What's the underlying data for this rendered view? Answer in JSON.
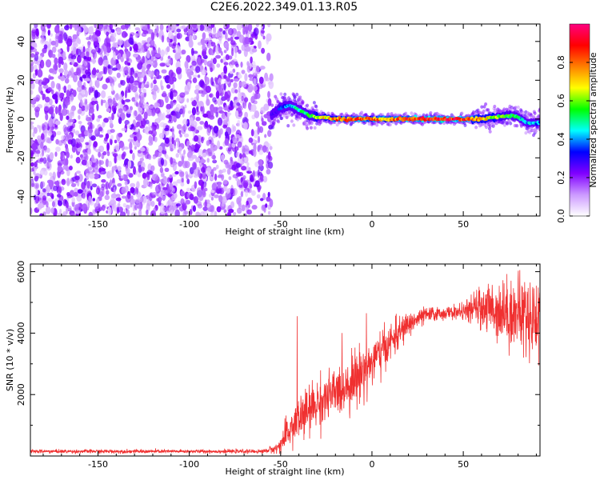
{
  "title": "C2E6.2022.349.01.13.R05",
  "chart_data": [
    {
      "type": "heatmap",
      "title": "C2E6.2022.349.01.13.R05",
      "xlabel": "Height of straight line (km)",
      "ylabel": "Frequency (Hz)",
      "xlim": [
        -187,
        92
      ],
      "ylim": [
        -50,
        49
      ],
      "xticks": [
        -150,
        -100,
        -50,
        0,
        50
      ],
      "yticks": [
        -40,
        -20,
        0,
        20,
        40
      ],
      "colorbar": {
        "label": "Normalized spectral amplitude",
        "range": [
          0.0,
          1.0
        ],
        "ticks": [
          0.0,
          0.2,
          0.4,
          0.6,
          0.8
        ],
        "colors": [
          "#ffffff",
          "#cc99ff",
          "#8000ff",
          "#0000ff",
          "#00ffff",
          "#00ff00",
          "#ffff00",
          "#ff8000",
          "#ff0000",
          "#ff0080"
        ]
      },
      "noise_region": {
        "x_from": -187,
        "x_to": -55,
        "amplitude": 0.15
      },
      "signal_ridge": [
        {
          "x": -55,
          "freq": 2,
          "amp": 0.25
        },
        {
          "x": -50,
          "freq": 6,
          "amp": 0.35
        },
        {
          "x": -45,
          "freq": 7,
          "amp": 0.45
        },
        {
          "x": -40,
          "freq": 5,
          "amp": 0.5
        },
        {
          "x": -35,
          "freq": 2,
          "amp": 0.55
        },
        {
          "x": -30,
          "freq": 1,
          "amp": 0.65
        },
        {
          "x": -20,
          "freq": 0,
          "amp": 0.8
        },
        {
          "x": -10,
          "freq": 0,
          "amp": 0.85
        },
        {
          "x": 0,
          "freq": 0,
          "amp": 0.85
        },
        {
          "x": 10,
          "freq": 0,
          "amp": 0.8
        },
        {
          "x": 20,
          "freq": 0,
          "amp": 0.9
        },
        {
          "x": 30,
          "freq": 0,
          "amp": 0.95
        },
        {
          "x": 40,
          "freq": 0,
          "amp": 0.95
        },
        {
          "x": 50,
          "freq": 0,
          "amp": 0.9
        },
        {
          "x": 60,
          "freq": 0,
          "amp": 0.75
        },
        {
          "x": 70,
          "freq": 1,
          "amp": 0.6
        },
        {
          "x": 75,
          "freq": 2,
          "amp": 0.6
        },
        {
          "x": 80,
          "freq": 1,
          "amp": 0.5
        },
        {
          "x": 85,
          "freq": -2,
          "amp": 0.45
        },
        {
          "x": 92,
          "freq": -2,
          "amp": 0.4
        }
      ]
    },
    {
      "type": "line",
      "xlabel": "Height of straight line (km)",
      "ylabel": "SNR (10 * v/v)",
      "xlim": [
        -187,
        92
      ],
      "ylim": [
        0,
        6250
      ],
      "xticks": [
        -150,
        -100,
        -50,
        0,
        50
      ],
      "yticks": [
        2000,
        4000,
        6000
      ],
      "line_color": "#f03030",
      "envelope": [
        {
          "x": -187,
          "mean": 150,
          "spread": 60
        },
        {
          "x": -60,
          "mean": 150,
          "spread": 60
        },
        {
          "x": -52,
          "mean": 250,
          "spread": 150
        },
        {
          "x": -48,
          "mean": 550,
          "spread": 450
        },
        {
          "x": -45,
          "mean": 850,
          "spread": 600
        },
        {
          "x": -40,
          "mean": 1200,
          "spread": 800
        },
        {
          "x": -30,
          "mean": 1700,
          "spread": 800
        },
        {
          "x": -20,
          "mean": 2050,
          "spread": 800
        },
        {
          "x": -10,
          "mean": 2500,
          "spread": 900
        },
        {
          "x": 0,
          "mean": 3050,
          "spread": 800
        },
        {
          "x": 10,
          "mean": 3700,
          "spread": 600
        },
        {
          "x": 20,
          "mean": 4300,
          "spread": 400
        },
        {
          "x": 30,
          "mean": 4600,
          "spread": 250
        },
        {
          "x": 40,
          "mean": 4650,
          "spread": 200
        },
        {
          "x": 50,
          "mean": 4700,
          "spread": 250
        },
        {
          "x": 60,
          "mean": 4850,
          "spread": 700
        },
        {
          "x": 70,
          "mean": 4750,
          "spread": 1000
        },
        {
          "x": 80,
          "mean": 4600,
          "spread": 1200
        },
        {
          "x": 92,
          "mean": 4500,
          "spread": 1400
        }
      ],
      "spikes": [
        {
          "x": -41,
          "y": 4550
        },
        {
          "x": -3,
          "y": 4650
        },
        {
          "x": 81,
          "y": 6050
        }
      ]
    }
  ]
}
